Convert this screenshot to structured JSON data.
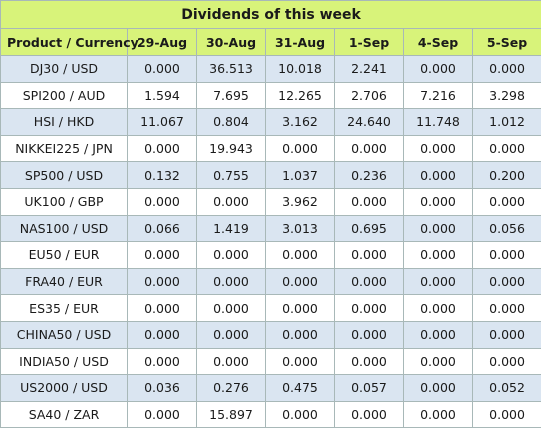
{
  "title": "Dividends of this week",
  "columns": [
    "Product / Currency",
    "29-Aug",
    "30-Aug",
    "31-Aug",
    "1-Sep",
    "4-Sep",
    "5-Sep"
  ],
  "rows": [
    {
      "product": "DJ30 / USD",
      "values": [
        "0.000",
        "36.513",
        "10.018",
        "2.241",
        "0.000",
        "0.000"
      ]
    },
    {
      "product": "SPI200 / AUD",
      "values": [
        "1.594",
        "7.695",
        "12.265",
        "2.706",
        "7.216",
        "3.298"
      ]
    },
    {
      "product": "HSI / HKD",
      "values": [
        "11.067",
        "0.804",
        "3.162",
        "24.640",
        "11.748",
        "1.012"
      ]
    },
    {
      "product": "NIKKEI225 / JPN",
      "values": [
        "0.000",
        "19.943",
        "0.000",
        "0.000",
        "0.000",
        "0.000"
      ]
    },
    {
      "product": "SP500 / USD",
      "values": [
        "0.132",
        "0.755",
        "1.037",
        "0.236",
        "0.000",
        "0.200"
      ]
    },
    {
      "product": "UK100 / GBP",
      "values": [
        "0.000",
        "0.000",
        "3.962",
        "0.000",
        "0.000",
        "0.000"
      ]
    },
    {
      "product": "NAS100 / USD",
      "values": [
        "0.066",
        "1.419",
        "3.013",
        "0.695",
        "0.000",
        "0.056"
      ]
    },
    {
      "product": "EU50 / EUR",
      "values": [
        "0.000",
        "0.000",
        "0.000",
        "0.000",
        "0.000",
        "0.000"
      ]
    },
    {
      "product": "FRA40 / EUR",
      "values": [
        "0.000",
        "0.000",
        "0.000",
        "0.000",
        "0.000",
        "0.000"
      ]
    },
    {
      "product": "ES35 / EUR",
      "values": [
        "0.000",
        "0.000",
        "0.000",
        "0.000",
        "0.000",
        "0.000"
      ]
    },
    {
      "product": "CHINA50 / USD",
      "values": [
        "0.000",
        "0.000",
        "0.000",
        "0.000",
        "0.000",
        "0.000"
      ]
    },
    {
      "product": "INDIA50 / USD",
      "values": [
        "0.000",
        "0.000",
        "0.000",
        "0.000",
        "0.000",
        "0.000"
      ]
    },
    {
      "product": "US2000 / USD",
      "values": [
        "0.036",
        "0.276",
        "0.475",
        "0.057",
        "0.000",
        "0.052"
      ]
    },
    {
      "product": "SA40 / ZAR",
      "values": [
        "0.000",
        "15.897",
        "0.000",
        "0.000",
        "0.000",
        "0.000"
      ]
    }
  ]
}
